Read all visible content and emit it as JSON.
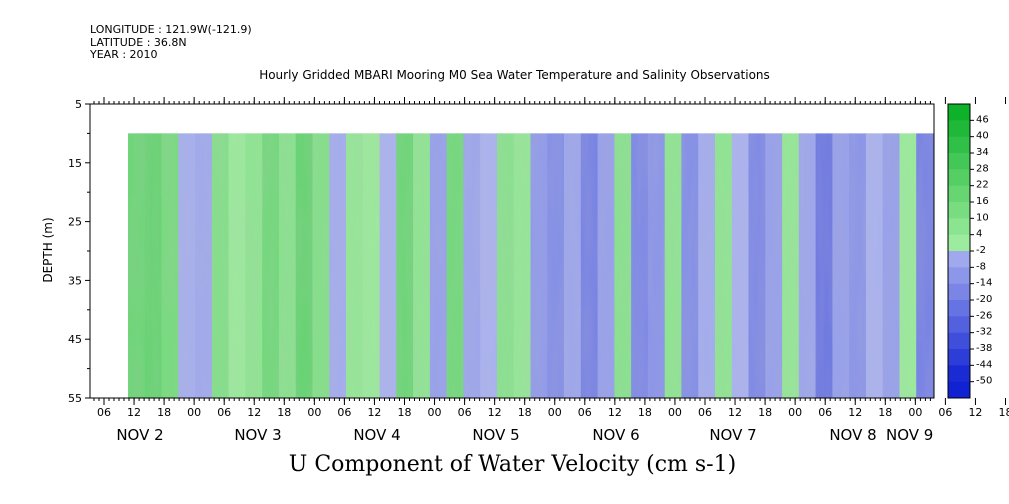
{
  "header": {
    "longitude": "LONGITUDE : 121.9W(-121.9)",
    "latitude": "LATITUDE : 36.8N",
    "year": "YEAR : 2010"
  },
  "chart_title": "Hourly Gridded MBARI Mooring M0 Sea Water Temperature and Salinity Observations",
  "bottom_title": "U Component of Water Velocity (cm s-1)",
  "chart_data": {
    "type": "heatmap",
    "title": "Hourly Gridded MBARI Mooring M0 Sea Water Temperature and Salinity Observations",
    "ylabel": "DEPTH (m)",
    "xlabel": "",
    "y_inverted": true,
    "ylim": [
      5,
      55
    ],
    "y_ticks": [
      5,
      15,
      25,
      35,
      45,
      55
    ],
    "data_depth_range": [
      10,
      55
    ],
    "hour_tick_labels": [
      "06",
      "12",
      "18",
      "00",
      "06",
      "12",
      "18",
      "00",
      "06",
      "12",
      "18",
      "00",
      "06",
      "12",
      "18",
      "00",
      "06",
      "12",
      "18",
      "00",
      "06",
      "12",
      "18",
      "00",
      "06",
      "12",
      "18",
      "00",
      "06",
      "12",
      "18",
      "00"
    ],
    "day_labels": [
      "NOV  2",
      "NOV  3",
      "NOV  4",
      "NOV  5",
      "NOV  6",
      "NOV  7",
      "NOV  8",
      "NOV  9"
    ],
    "colorbar": {
      "labels": [
        "46",
        "40",
        "34",
        "28",
        "22",
        "16",
        "10",
        "4",
        "-2",
        "-8",
        "-14",
        "-20",
        "-26",
        "-32",
        "-38",
        "-44",
        "-50"
      ],
      "range": [
        -50,
        52
      ],
      "step": 6
    },
    "time_bands": [
      {
        "day": 2.0,
        "value": 18
      },
      {
        "day": 2.1,
        "value": 20
      },
      {
        "day": 2.25,
        "value": 14
      },
      {
        "day": 2.4,
        "value": -3
      },
      {
        "day": 2.55,
        "value": -5
      },
      {
        "day": 2.7,
        "value": 10
      },
      {
        "day": 2.85,
        "value": 2
      },
      {
        "day": 3.0,
        "value": 6
      },
      {
        "day": 3.15,
        "value": 16
      },
      {
        "day": 3.3,
        "value": 8
      },
      {
        "day": 3.45,
        "value": 20
      },
      {
        "day": 3.6,
        "value": 10
      },
      {
        "day": 3.75,
        "value": -4
      },
      {
        "day": 3.9,
        "value": 4
      },
      {
        "day": 4.05,
        "value": 2
      },
      {
        "day": 4.2,
        "value": -2
      },
      {
        "day": 4.35,
        "value": 18
      },
      {
        "day": 4.5,
        "value": 6
      },
      {
        "day": 4.65,
        "value": -8
      },
      {
        "day": 4.8,
        "value": 16
      },
      {
        "day": 4.95,
        "value": -6
      },
      {
        "day": 5.1,
        "value": -2
      },
      {
        "day": 5.25,
        "value": 8
      },
      {
        "day": 5.4,
        "value": 4
      },
      {
        "day": 5.55,
        "value": -10
      },
      {
        "day": 5.7,
        "value": -14
      },
      {
        "day": 5.85,
        "value": -6
      },
      {
        "day": 6.0,
        "value": -18
      },
      {
        "day": 6.15,
        "value": -8
      },
      {
        "day": 6.3,
        "value": 8
      },
      {
        "day": 6.45,
        "value": -16
      },
      {
        "day": 6.6,
        "value": -12
      },
      {
        "day": 6.75,
        "value": 6
      },
      {
        "day": 6.9,
        "value": -14
      },
      {
        "day": 7.05,
        "value": -4
      },
      {
        "day": 7.2,
        "value": 6
      },
      {
        "day": 7.35,
        "value": -2
      },
      {
        "day": 7.5,
        "value": -16
      },
      {
        "day": 7.65,
        "value": -8
      },
      {
        "day": 7.8,
        "value": 4
      },
      {
        "day": 7.95,
        "value": -6
      },
      {
        "day": 8.1,
        "value": -22
      },
      {
        "day": 8.25,
        "value": -8
      },
      {
        "day": 8.4,
        "value": -12
      },
      {
        "day": 8.55,
        "value": -2
      },
      {
        "day": 8.7,
        "value": -8
      },
      {
        "day": 8.85,
        "value": 2
      },
      {
        "day": 9.0,
        "value": -18
      }
    ]
  }
}
